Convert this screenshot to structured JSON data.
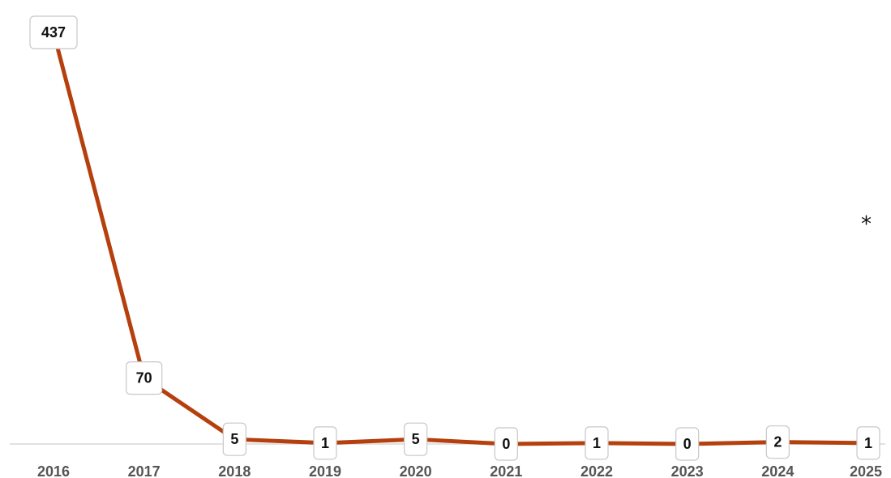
{
  "chart_data": {
    "type": "line",
    "x": [
      "2016",
      "2017",
      "2018",
      "2019",
      "2020",
      "2021",
      "2022",
      "2023",
      "2024",
      "2025"
    ],
    "values": [
      437,
      70,
      5,
      1,
      5,
      0,
      1,
      0,
      2,
      1
    ],
    "data_labels": [
      "437",
      "70",
      "5",
      "1",
      "5",
      "0",
      "1",
      "0",
      "2",
      "1"
    ],
    "ylim": [
      0,
      437
    ],
    "grid": false,
    "line_color": "#b5400e",
    "baseline_color": "#d9d9d9"
  },
  "annotation": "*"
}
